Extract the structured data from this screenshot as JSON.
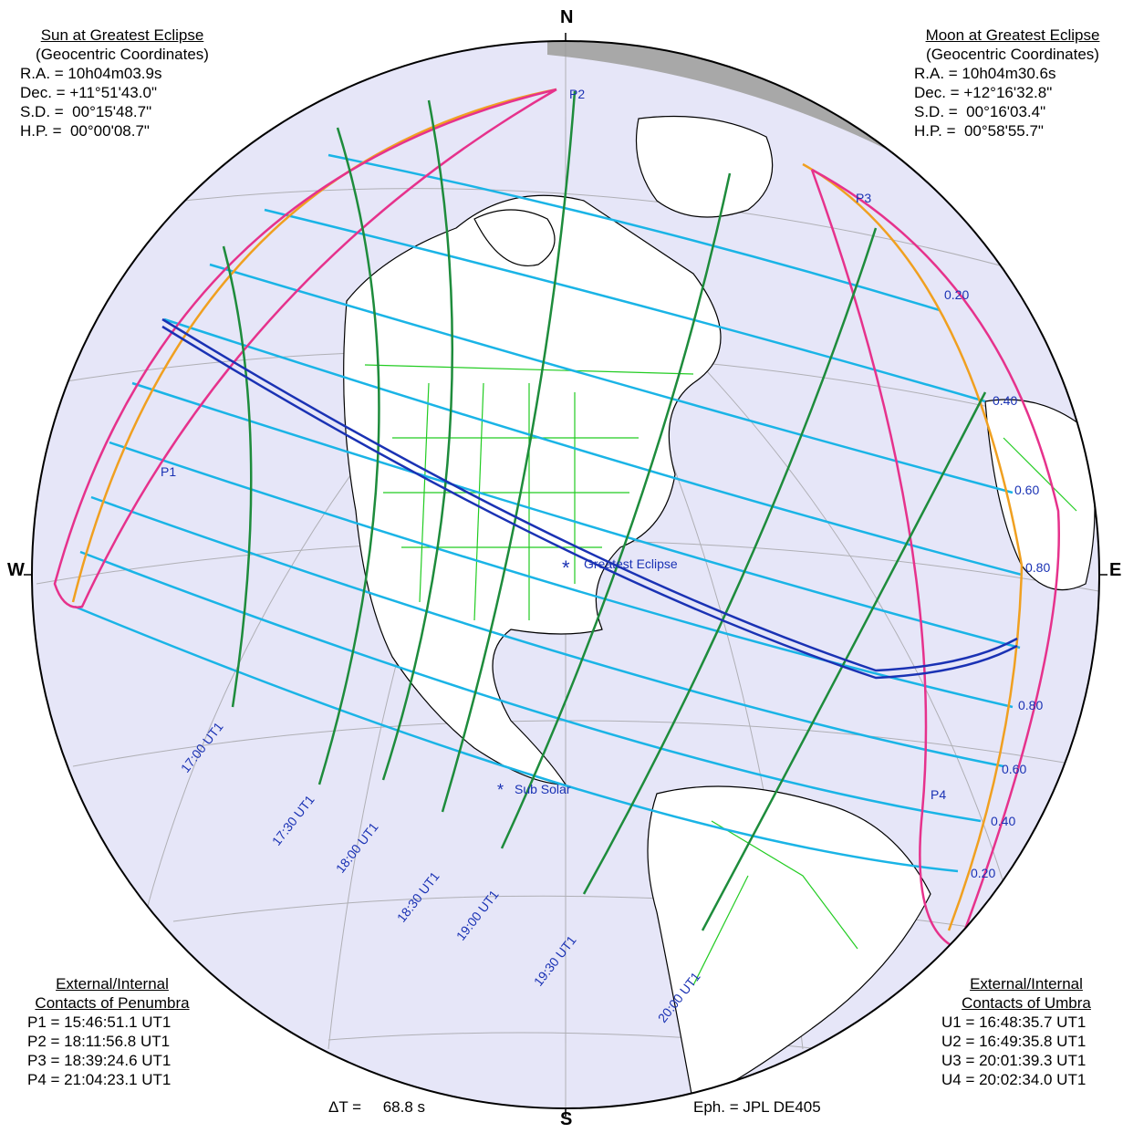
{
  "sun": {
    "title": "Sun at Greatest Eclipse",
    "subtitle": "(Geocentric Coordinates)",
    "ra": "R.A. = 10h04m03.9s",
    "dec": "Dec. = +11°51'43.0\"",
    "sd": "S.D. =  00°15'48.7\"",
    "hp": "H.P. =  00°00'08.7\""
  },
  "moon": {
    "title": "Moon at Greatest Eclipse",
    "subtitle": "(Geocentric Coordinates)",
    "ra": "R.A. = 10h04m30.6s",
    "dec": "Dec. = +12°16'32.8\"",
    "sd": "S.D. =  00°16'03.4\"",
    "hp": "H.P. =  00°58'55.7\""
  },
  "penumbra": {
    "title1": "External/Internal",
    "title2": "Contacts of Penumbra",
    "p1": "P1 = 15:46:51.1 UT1",
    "p2": "P2 = 18:11:56.8 UT1",
    "p3": "P3 = 18:39:24.6 UT1",
    "p4": "P4 = 21:04:23.1 UT1"
  },
  "umbra": {
    "title1": "External/Internal",
    "title2": "Contacts of Umbra",
    "u1": "U1 = 16:48:35.7 UT1",
    "u2": "U2 = 16:49:35.8 UT1",
    "u3": "U3 = 20:01:39.3 UT1",
    "u4": "U4 = 20:02:34.0 UT1"
  },
  "compass": {
    "n": "N",
    "s": "S",
    "w": "W",
    "e": "E"
  },
  "footer": {
    "delta_t": "ΔT =     68.8 s",
    "ephemeris": "Eph. = JPL DE405"
  },
  "map": {
    "contact_points": {
      "p1": "P1",
      "p2": "P2",
      "p3": "P3",
      "p4": "P4"
    },
    "greatest_eclipse": "Greatest Eclipse",
    "sub_solar": "Sub Solar",
    "magnitude_labels_north": [
      "0.20",
      "0.40",
      "0.60",
      "0.80"
    ],
    "magnitude_labels_south": [
      "0.80",
      "0.60",
      "0.40",
      "0.20"
    ],
    "time_labels": [
      "17:00 UT1",
      "17:30 UT1",
      "18:00 UT1",
      "18:30 UT1",
      "19:00 UT1",
      "19:30 UT1",
      "20:00 UT1"
    ],
    "colors": {
      "globe_fill": "#e6e6f8",
      "land": "#ffffff",
      "night": "#a8a8a8",
      "magnitude": "#1ab4e6",
      "time": "#1e8c3c",
      "central_path": "#1a32b4",
      "penumbra_limit": "#f0a020",
      "contact_curve": "#e6328c",
      "borders": "#22cc22"
    }
  }
}
